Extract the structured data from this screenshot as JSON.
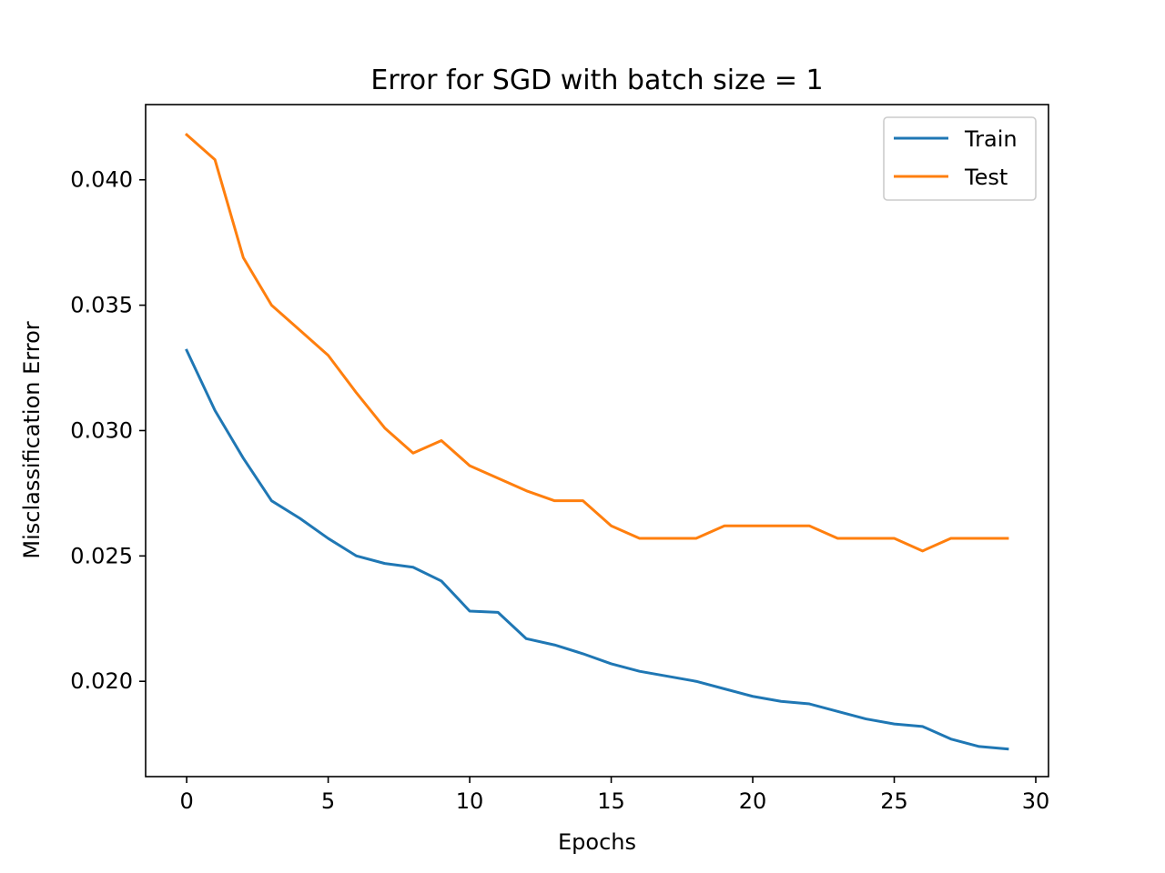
{
  "chart_data": {
    "type": "line",
    "title": "Error for SGD with batch size = 1",
    "xlabel": "Epochs",
    "ylabel": "Misclassification Error",
    "xlim": [
      -1.45,
      30.45
    ],
    "ylim": [
      0.0162,
      0.043
    ],
    "xticks": [
      0,
      5,
      10,
      15,
      20,
      25,
      30
    ],
    "xtick_labels": [
      "0",
      "5",
      "10",
      "15",
      "20",
      "25",
      "30"
    ],
    "yticks": [
      0.02,
      0.025,
      0.03,
      0.035,
      0.04
    ],
    "ytick_labels": [
      "0.020",
      "0.025",
      "0.030",
      "0.035",
      "0.040"
    ],
    "grid": false,
    "legend_position": "top-right",
    "x": [
      0,
      1,
      2,
      3,
      4,
      5,
      6,
      7,
      8,
      9,
      10,
      11,
      12,
      13,
      14,
      15,
      16,
      17,
      18,
      19,
      20,
      21,
      22,
      23,
      24,
      25,
      26,
      27,
      28,
      29
    ],
    "series": [
      {
        "name": "Train",
        "color": "#1f77b4",
        "values": [
          0.0332,
          0.0308,
          0.0289,
          0.0272,
          0.0265,
          0.0257,
          0.025,
          0.0247,
          0.02455,
          0.024,
          0.0228,
          0.02275,
          0.0217,
          0.02145,
          0.0211,
          0.0207,
          0.0204,
          0.0202,
          0.02,
          0.0197,
          0.0194,
          0.0192,
          0.0191,
          0.0188,
          0.0185,
          0.0183,
          0.0182,
          0.0177,
          0.0174,
          0.0173
        ]
      },
      {
        "name": "Test",
        "color": "#ff7f0e",
        "values": [
          0.0418,
          0.0408,
          0.0369,
          0.035,
          0.034,
          0.033,
          0.0315,
          0.0301,
          0.0291,
          0.0296,
          0.0286,
          0.0281,
          0.0276,
          0.0272,
          0.0272,
          0.0262,
          0.0257,
          0.0257,
          0.0257,
          0.0262,
          0.0262,
          0.0262,
          0.0262,
          0.0257,
          0.0257,
          0.0257,
          0.0252,
          0.0257,
          0.0257,
          0.0257
        ]
      }
    ]
  }
}
